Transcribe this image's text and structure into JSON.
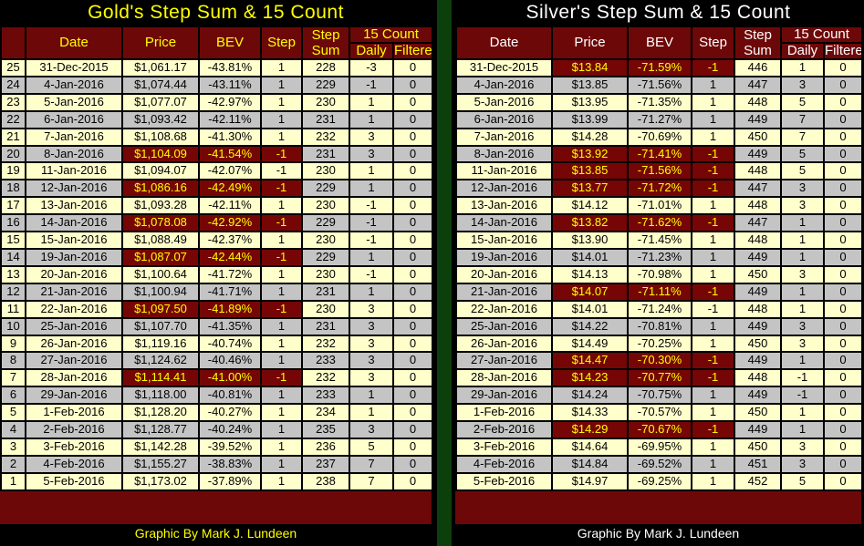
{
  "colors": {
    "background": "#000000",
    "header_bg": "#6d0808",
    "highlight_bg": "#760606",
    "highlight_text": "#ffff00",
    "row_light": "#ffffcc",
    "row_dark": "#c4c4c4",
    "divider_green": "#0c3f0c",
    "cell_text": "#000000",
    "gold_accent": "#ffff00",
    "silver_accent": "#ffffff"
  },
  "chart_data": [
    {
      "type": "table",
      "title": "Gold's Step Sum & 15 Count",
      "footer": "Graphic By Mark J. Lundeen",
      "accent": "#ffff00",
      "has_row_numbers": true,
      "headers": {
        "date": "Date",
        "price": "Price",
        "bev": "BEV",
        "step": "Step",
        "step_sum": "Step Sum",
        "count15": "15 Count",
        "daily": "Daily",
        "filtered": "Filtered"
      },
      "rows": [
        {
          "num": "25",
          "date": "31-Dec-2015",
          "price": "$1,061.17",
          "bev": "-43.81%",
          "step": "1",
          "sum": "228",
          "daily": "-3",
          "filtered": "0",
          "hl": false
        },
        {
          "num": "24",
          "date": "4-Jan-2016",
          "price": "$1,074.44",
          "bev": "-43.11%",
          "step": "1",
          "sum": "229",
          "daily": "-1",
          "filtered": "0",
          "hl": false
        },
        {
          "num": "23",
          "date": "5-Jan-2016",
          "price": "$1,077.07",
          "bev": "-42.97%",
          "step": "1",
          "sum": "230",
          "daily": "1",
          "filtered": "0",
          "hl": false
        },
        {
          "num": "22",
          "date": "6-Jan-2016",
          "price": "$1,093.42",
          "bev": "-42.11%",
          "step": "1",
          "sum": "231",
          "daily": "1",
          "filtered": "0",
          "hl": false
        },
        {
          "num": "21",
          "date": "7-Jan-2016",
          "price": "$1,108.68",
          "bev": "-41.30%",
          "step": "1",
          "sum": "232",
          "daily": "3",
          "filtered": "0",
          "hl": false
        },
        {
          "num": "20",
          "date": "8-Jan-2016",
          "price": "$1,104.09",
          "bev": "-41.54%",
          "step": "-1",
          "sum": "231",
          "daily": "3",
          "filtered": "0",
          "hl": true
        },
        {
          "num": "19",
          "date": "11-Jan-2016",
          "price": "$1,094.07",
          "bev": "-42.07%",
          "step": "-1",
          "sum": "230",
          "daily": "1",
          "filtered": "0",
          "hl": false
        },
        {
          "num": "18",
          "date": "12-Jan-2016",
          "price": "$1,086.16",
          "bev": "-42.49%",
          "step": "-1",
          "sum": "229",
          "daily": "1",
          "filtered": "0",
          "hl": true
        },
        {
          "num": "17",
          "date": "13-Jan-2016",
          "price": "$1,093.28",
          "bev": "-42.11%",
          "step": "1",
          "sum": "230",
          "daily": "-1",
          "filtered": "0",
          "hl": false
        },
        {
          "num": "16",
          "date": "14-Jan-2016",
          "price": "$1,078.08",
          "bev": "-42.92%",
          "step": "-1",
          "sum": "229",
          "daily": "-1",
          "filtered": "0",
          "hl": true
        },
        {
          "num": "15",
          "date": "15-Jan-2016",
          "price": "$1,088.49",
          "bev": "-42.37%",
          "step": "1",
          "sum": "230",
          "daily": "-1",
          "filtered": "0",
          "hl": false
        },
        {
          "num": "14",
          "date": "19-Jan-2016",
          "price": "$1,087.07",
          "bev": "-42.44%",
          "step": "-1",
          "sum": "229",
          "daily": "1",
          "filtered": "0",
          "hl": true
        },
        {
          "num": "13",
          "date": "20-Jan-2016",
          "price": "$1,100.64",
          "bev": "-41.72%",
          "step": "1",
          "sum": "230",
          "daily": "-1",
          "filtered": "0",
          "hl": false
        },
        {
          "num": "12",
          "date": "21-Jan-2016",
          "price": "$1,100.94",
          "bev": "-41.71%",
          "step": "1",
          "sum": "231",
          "daily": "1",
          "filtered": "0",
          "hl": false
        },
        {
          "num": "11",
          "date": "22-Jan-2016",
          "price": "$1,097.50",
          "bev": "-41.89%",
          "step": "-1",
          "sum": "230",
          "daily": "3",
          "filtered": "0",
          "hl": true
        },
        {
          "num": "10",
          "date": "25-Jan-2016",
          "price": "$1,107.70",
          "bev": "-41.35%",
          "step": "1",
          "sum": "231",
          "daily": "3",
          "filtered": "0",
          "hl": false
        },
        {
          "num": "9",
          "date": "26-Jan-2016",
          "price": "$1,119.16",
          "bev": "-40.74%",
          "step": "1",
          "sum": "232",
          "daily": "3",
          "filtered": "0",
          "hl": false
        },
        {
          "num": "8",
          "date": "27-Jan-2016",
          "price": "$1,124.62",
          "bev": "-40.46%",
          "step": "1",
          "sum": "233",
          "daily": "3",
          "filtered": "0",
          "hl": false
        },
        {
          "num": "7",
          "date": "28-Jan-2016",
          "price": "$1,114.41",
          "bev": "-41.00%",
          "step": "-1",
          "sum": "232",
          "daily": "3",
          "filtered": "0",
          "hl": true
        },
        {
          "num": "6",
          "date": "29-Jan-2016",
          "price": "$1,118.00",
          "bev": "-40.81%",
          "step": "1",
          "sum": "233",
          "daily": "1",
          "filtered": "0",
          "hl": false
        },
        {
          "num": "5",
          "date": "1-Feb-2016",
          "price": "$1,128.20",
          "bev": "-40.27%",
          "step": "1",
          "sum": "234",
          "daily": "1",
          "filtered": "0",
          "hl": false
        },
        {
          "num": "4",
          "date": "2-Feb-2016",
          "price": "$1,128.77",
          "bev": "-40.24%",
          "step": "1",
          "sum": "235",
          "daily": "3",
          "filtered": "0",
          "hl": false
        },
        {
          "num": "3",
          "date": "3-Feb-2016",
          "price": "$1,142.28",
          "bev": "-39.52%",
          "step": "1",
          "sum": "236",
          "daily": "5",
          "filtered": "0",
          "hl": false
        },
        {
          "num": "2",
          "date": "4-Feb-2016",
          "price": "$1,155.27",
          "bev": "-38.83%",
          "step": "1",
          "sum": "237",
          "daily": "7",
          "filtered": "0",
          "hl": false
        },
        {
          "num": "1",
          "date": "5-Feb-2016",
          "price": "$1,173.02",
          "bev": "-37.89%",
          "step": "1",
          "sum": "238",
          "daily": "7",
          "filtered": "0",
          "hl": false
        }
      ]
    },
    {
      "type": "table",
      "title": "Silver's Step Sum & 15 Count",
      "footer": "Graphic By Mark J. Lundeen",
      "accent": "#ffffff",
      "has_row_numbers": false,
      "headers": {
        "date": "Date",
        "price": "Price",
        "bev": "BEV",
        "step": "Step",
        "step_sum": "Step Sum",
        "count15": "15 Count",
        "daily": "Daily",
        "filtered": "Filtered"
      },
      "rows": [
        {
          "date": "31-Dec-2015",
          "price": "$13.84",
          "bev": "-71.59%",
          "step": "-1",
          "sum": "446",
          "daily": "1",
          "filtered": "0",
          "hl": true
        },
        {
          "date": "4-Jan-2016",
          "price": "$13.85",
          "bev": "-71.56%",
          "step": "1",
          "sum": "447",
          "daily": "3",
          "filtered": "0",
          "hl": false
        },
        {
          "date": "5-Jan-2016",
          "price": "$13.95",
          "bev": "-71.35%",
          "step": "1",
          "sum": "448",
          "daily": "5",
          "filtered": "0",
          "hl": false
        },
        {
          "date": "6-Jan-2016",
          "price": "$13.99",
          "bev": "-71.27%",
          "step": "1",
          "sum": "449",
          "daily": "7",
          "filtered": "0",
          "hl": false
        },
        {
          "date": "7-Jan-2016",
          "price": "$14.28",
          "bev": "-70.69%",
          "step": "1",
          "sum": "450",
          "daily": "7",
          "filtered": "0",
          "hl": false
        },
        {
          "date": "8-Jan-2016",
          "price": "$13.92",
          "bev": "-71.41%",
          "step": "-1",
          "sum": "449",
          "daily": "5",
          "filtered": "0",
          "hl": true
        },
        {
          "date": "11-Jan-2016",
          "price": "$13.85",
          "bev": "-71.56%",
          "step": "-1",
          "sum": "448",
          "daily": "5",
          "filtered": "0",
          "hl": true
        },
        {
          "date": "12-Jan-2016",
          "price": "$13.77",
          "bev": "-71.72%",
          "step": "-1",
          "sum": "447",
          "daily": "3",
          "filtered": "0",
          "hl": true
        },
        {
          "date": "13-Jan-2016",
          "price": "$14.12",
          "bev": "-71.01%",
          "step": "1",
          "sum": "448",
          "daily": "3",
          "filtered": "0",
          "hl": false
        },
        {
          "date": "14-Jan-2016",
          "price": "$13.82",
          "bev": "-71.62%",
          "step": "-1",
          "sum": "447",
          "daily": "1",
          "filtered": "0",
          "hl": true
        },
        {
          "date": "15-Jan-2016",
          "price": "$13.90",
          "bev": "-71.45%",
          "step": "1",
          "sum": "448",
          "daily": "1",
          "filtered": "0",
          "hl": false
        },
        {
          "date": "19-Jan-2016",
          "price": "$14.01",
          "bev": "-71.23%",
          "step": "1",
          "sum": "449",
          "daily": "1",
          "filtered": "0",
          "hl": false
        },
        {
          "date": "20-Jan-2016",
          "price": "$14.13",
          "bev": "-70.98%",
          "step": "1",
          "sum": "450",
          "daily": "3",
          "filtered": "0",
          "hl": false
        },
        {
          "date": "21-Jan-2016",
          "price": "$14.07",
          "bev": "-71.11%",
          "step": "-1",
          "sum": "449",
          "daily": "1",
          "filtered": "0",
          "hl": true
        },
        {
          "date": "22-Jan-2016",
          "price": "$14.01",
          "bev": "-71.24%",
          "step": "-1",
          "sum": "448",
          "daily": "1",
          "filtered": "0",
          "hl": false
        },
        {
          "date": "25-Jan-2016",
          "price": "$14.22",
          "bev": "-70.81%",
          "step": "1",
          "sum": "449",
          "daily": "3",
          "filtered": "0",
          "hl": false
        },
        {
          "date": "26-Jan-2016",
          "price": "$14.49",
          "bev": "-70.25%",
          "step": "1",
          "sum": "450",
          "daily": "3",
          "filtered": "0",
          "hl": false
        },
        {
          "date": "27-Jan-2016",
          "price": "$14.47",
          "bev": "-70.30%",
          "step": "-1",
          "sum": "449",
          "daily": "1",
          "filtered": "0",
          "hl": true
        },
        {
          "date": "28-Jan-2016",
          "price": "$14.23",
          "bev": "-70.77%",
          "step": "-1",
          "sum": "448",
          "daily": "-1",
          "filtered": "0",
          "hl": true
        },
        {
          "date": "29-Jan-2016",
          "price": "$14.24",
          "bev": "-70.75%",
          "step": "1",
          "sum": "449",
          "daily": "-1",
          "filtered": "0",
          "hl": false
        },
        {
          "date": "1-Feb-2016",
          "price": "$14.33",
          "bev": "-70.57%",
          "step": "1",
          "sum": "450",
          "daily": "1",
          "filtered": "0",
          "hl": false
        },
        {
          "date": "2-Feb-2016",
          "price": "$14.29",
          "bev": "-70.67%",
          "step": "-1",
          "sum": "449",
          "daily": "1",
          "filtered": "0",
          "hl": true
        },
        {
          "date": "3-Feb-2016",
          "price": "$14.64",
          "bev": "-69.95%",
          "step": "1",
          "sum": "450",
          "daily": "3",
          "filtered": "0",
          "hl": false
        },
        {
          "date": "4-Feb-2016",
          "price": "$14.84",
          "bev": "-69.52%",
          "step": "1",
          "sum": "451",
          "daily": "3",
          "filtered": "0",
          "hl": false
        },
        {
          "date": "5-Feb-2016",
          "price": "$14.97",
          "bev": "-69.25%",
          "step": "1",
          "sum": "452",
          "daily": "5",
          "filtered": "0",
          "hl": false
        }
      ]
    }
  ]
}
